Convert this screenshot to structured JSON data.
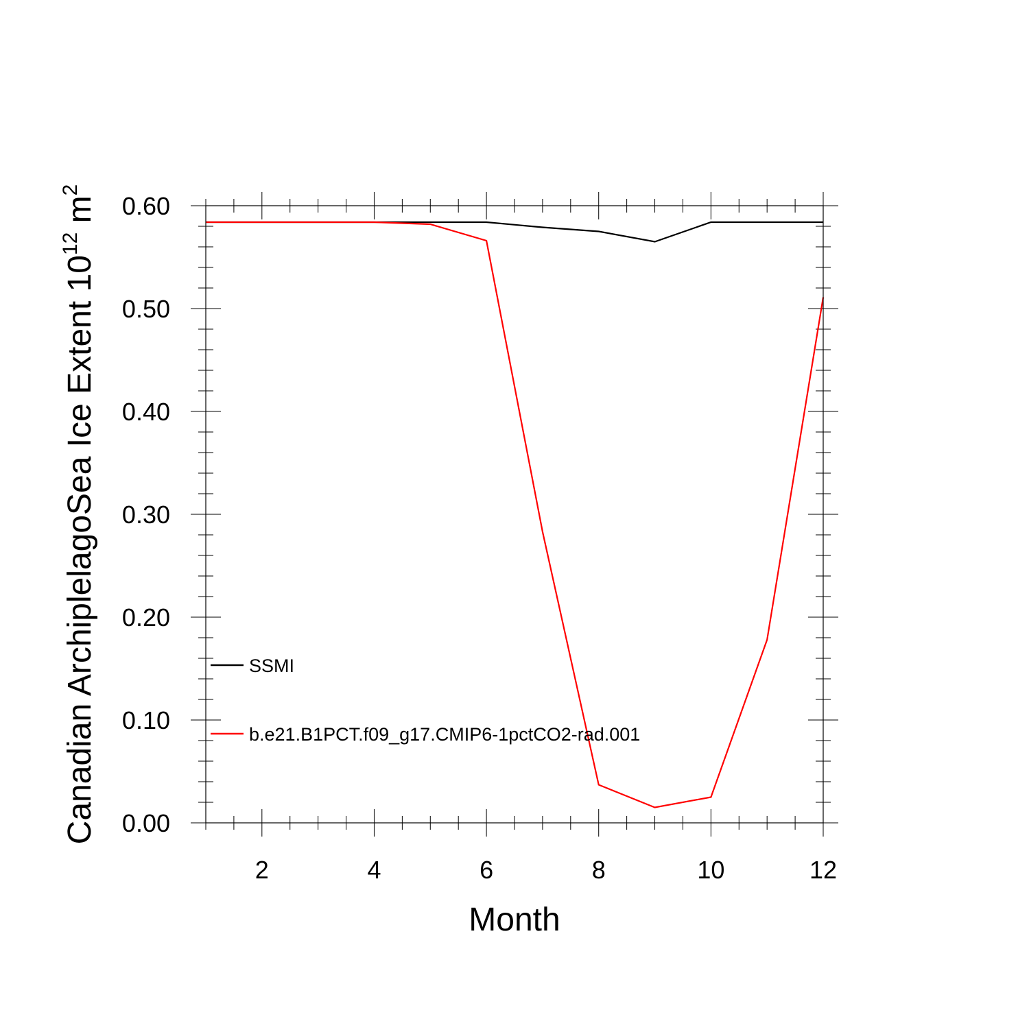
{
  "chart_data": {
    "type": "line",
    "title": "",
    "xlabel": "Month",
    "ylabel": "Canadian ArchiplelagoSea Ice Extent 10",
    "ylabel_sup": "12",
    "ylabel_unit": " m",
    "ylabel_unit_sup": "2",
    "xlim": [
      1,
      12
    ],
    "ylim": [
      0.0,
      0.6
    ],
    "x_ticks": [
      2,
      4,
      6,
      8,
      10,
      12
    ],
    "x_tick_labels": [
      "2",
      "4",
      "6",
      "8",
      "10",
      "12"
    ],
    "y_ticks": [
      0.0,
      0.1,
      0.2,
      0.3,
      0.4,
      0.5,
      0.6
    ],
    "y_tick_labels": [
      "0.00",
      "0.10",
      "0.20",
      "0.30",
      "0.40",
      "0.50",
      "0.60"
    ],
    "grid": false,
    "legend_position": "lower-left",
    "x": [
      1,
      2,
      3,
      4,
      5,
      6,
      7,
      8,
      9,
      10,
      11,
      12
    ],
    "series": [
      {
        "name": "SSMI",
        "color": "#000000",
        "values": [
          0.584,
          0.584,
          0.584,
          0.584,
          0.584,
          0.584,
          0.579,
          0.575,
          0.565,
          0.584,
          0.584,
          0.584
        ]
      },
      {
        "name": "b.e21.B1PCT.f09_g17.CMIP6-1pctCO2-rad.001",
        "color": "#ff0000",
        "values": [
          0.584,
          0.584,
          0.584,
          0.584,
          0.582,
          0.566,
          0.283,
          0.037,
          0.015,
          0.025,
          0.178,
          0.511
        ]
      }
    ]
  }
}
